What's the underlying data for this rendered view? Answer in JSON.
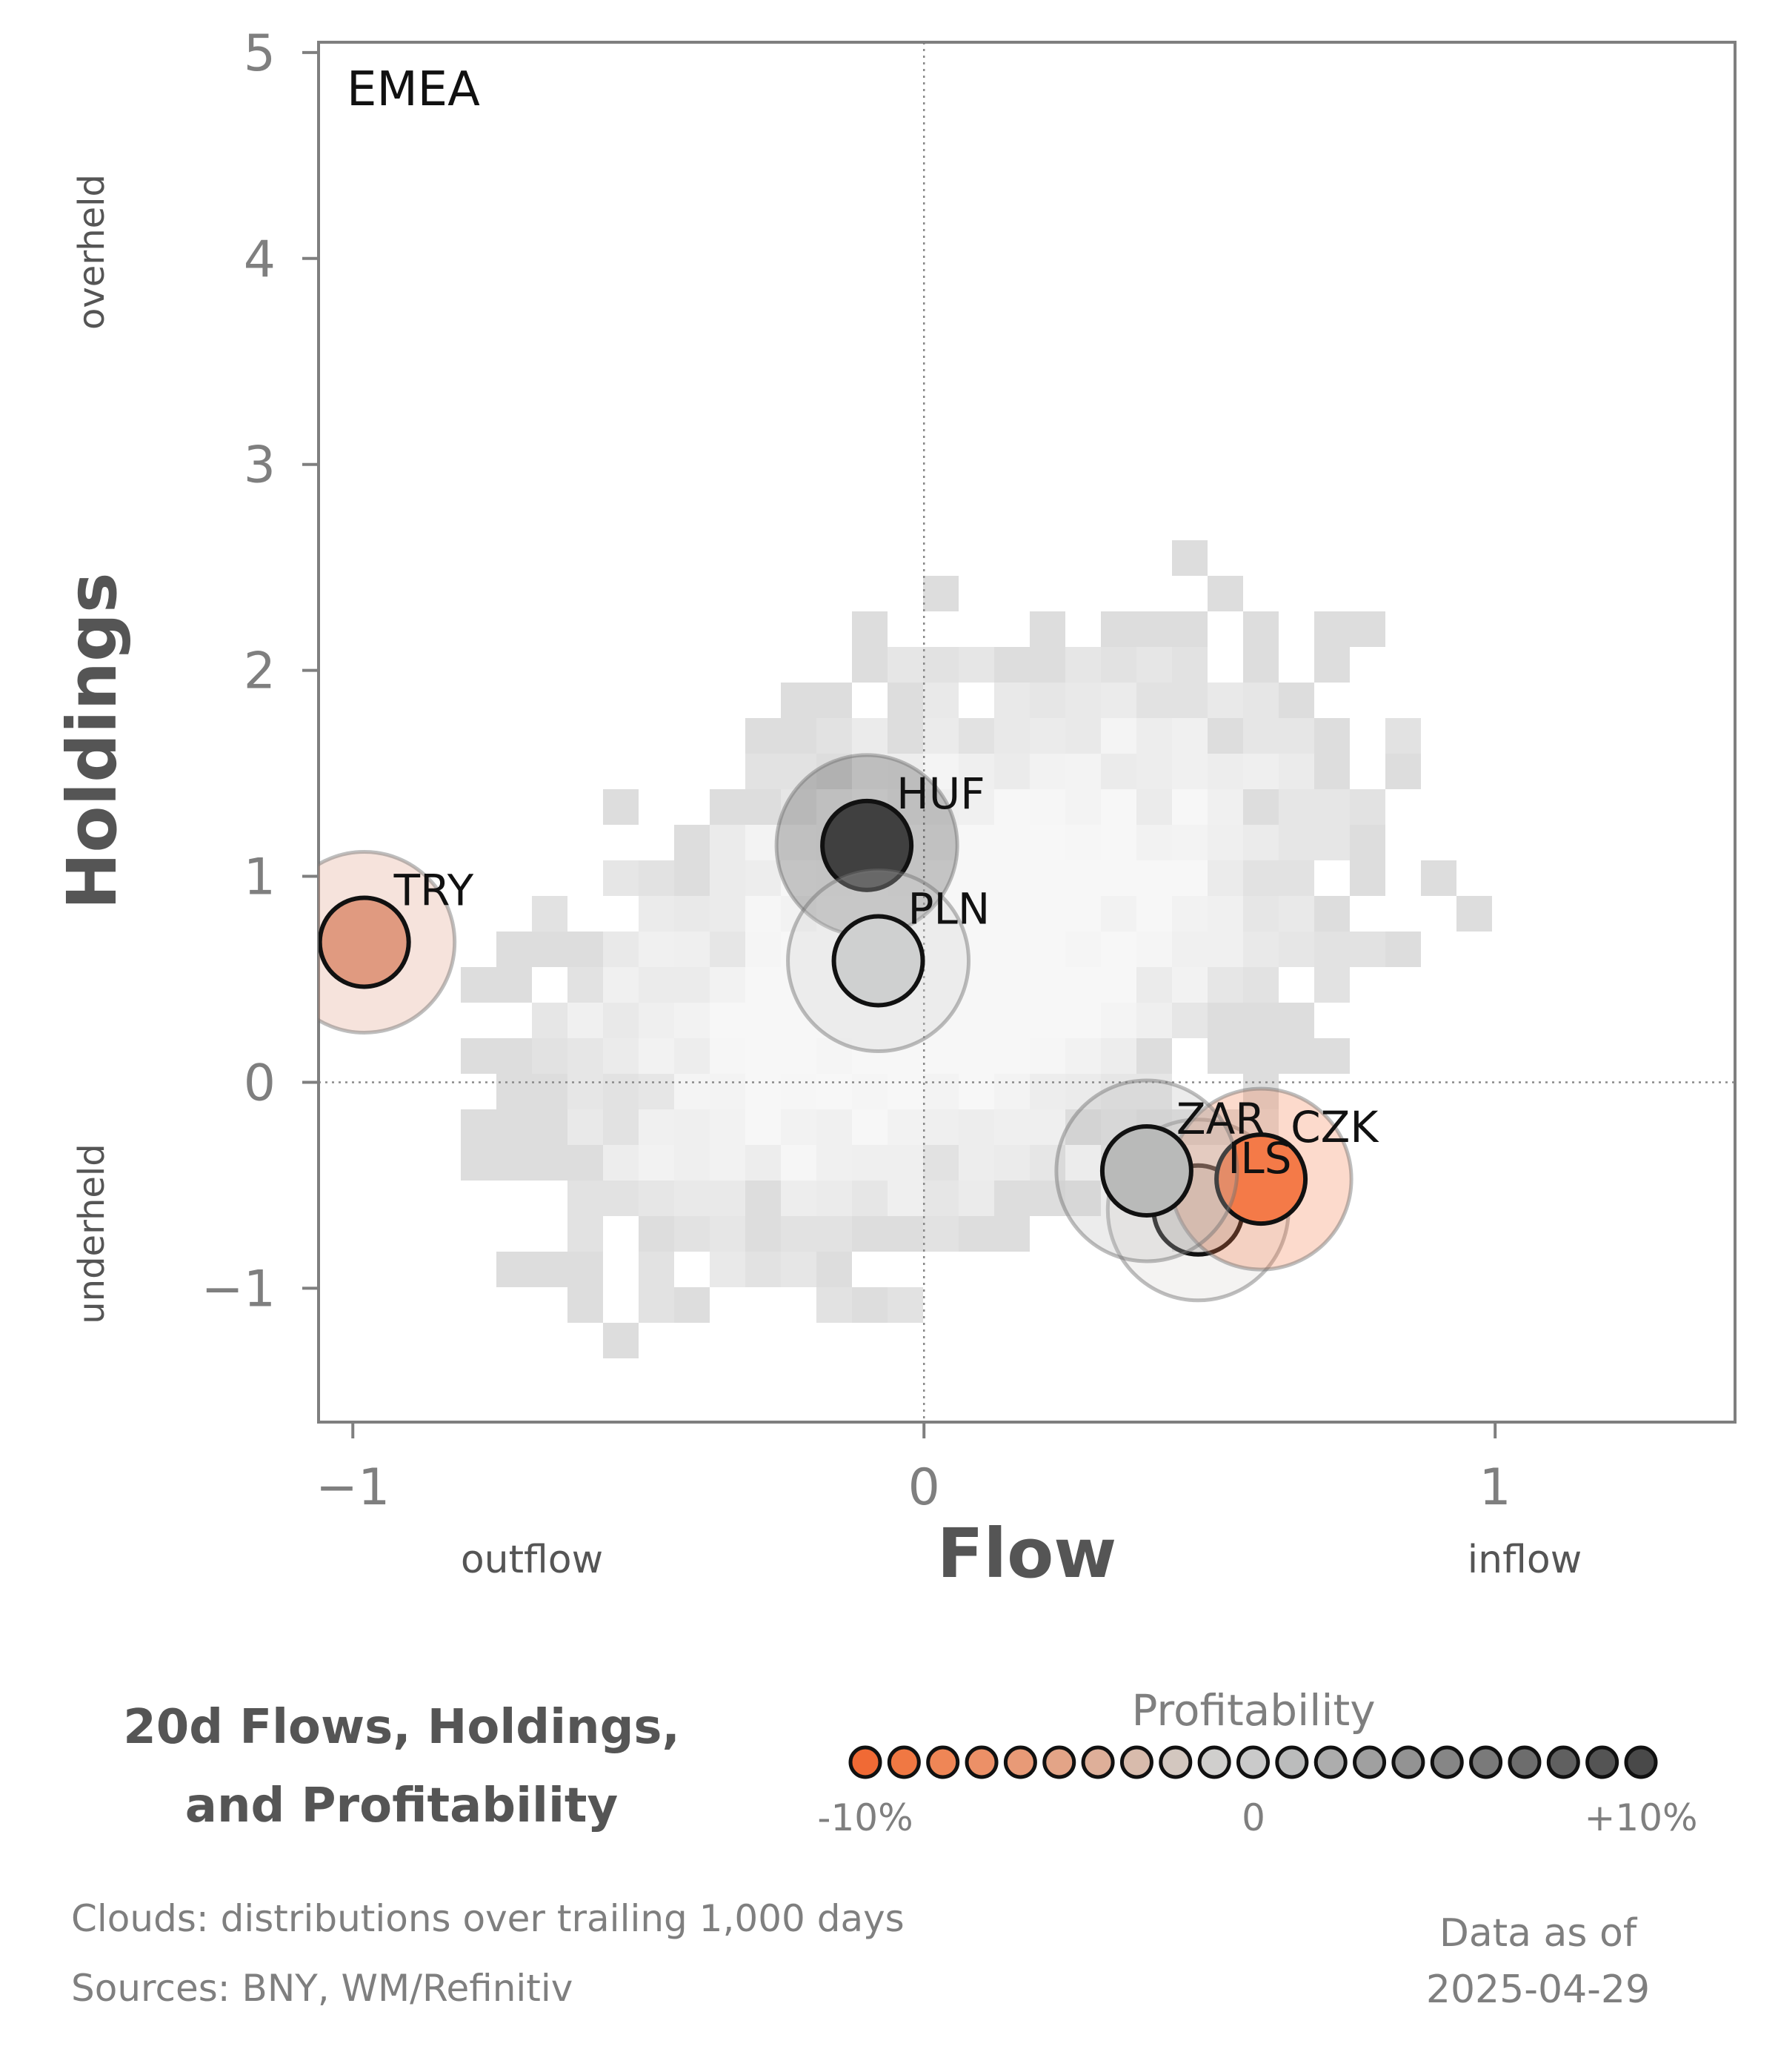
{
  "chart_data": {
    "type": "scatter",
    "title": "20d Flows, Holdings, and Profitability",
    "title_lines": [
      "20d Flows, Holdings,",
      "and Profitability"
    ],
    "panel_label": "EMEA",
    "xlabel": "Flow",
    "ylabel": "Holdings",
    "x_annotations": {
      "left": "outflow",
      "right": "inflow"
    },
    "y_annotations": {
      "top": "overheld",
      "bottom": "underheld"
    },
    "xlim": [
      -1.06,
      1.42
    ],
    "ylim": [
      -1.65,
      5.05
    ],
    "x_ticks": [
      -1,
      0,
      1
    ],
    "x_tick_labels": [
      "−1",
      "0",
      "1"
    ],
    "y_ticks": [
      -1,
      0,
      1,
      2,
      3,
      4,
      5
    ],
    "y_tick_labels": [
      "−1",
      "0",
      "1",
      "2",
      "3",
      "4",
      "5"
    ],
    "reference_lines": {
      "x": 0,
      "y": 0,
      "style": "dotted"
    },
    "background": "2D histogram clouds of trailing distributions (grey)",
    "points": [
      {
        "label": "TRY",
        "x": -0.98,
        "y": 0.68,
        "profitability": -0.05,
        "color": "#e09a80"
      },
      {
        "label": "HUF",
        "x": -0.1,
        "y": 1.15,
        "profitability": 0.1,
        "color": "#404040"
      },
      {
        "label": "PLN",
        "x": -0.08,
        "y": 0.59,
        "profitability": 0.01,
        "color": "#cfd0d0"
      },
      {
        "label": "ILS",
        "x": 0.48,
        "y": -0.62,
        "profitability": 0.0,
        "color": "#d7d4d2"
      },
      {
        "label": "CZK",
        "x": 0.59,
        "y": -0.47,
        "profitability": -0.095,
        "color": "#f47a48"
      },
      {
        "label": "ZAR",
        "x": 0.39,
        "y": -0.43,
        "profitability": 0.03,
        "color": "#b9bab9"
      }
    ],
    "colorbar": {
      "title": "Profitability",
      "min_label": "-10%",
      "mid_label": "0",
      "max_label": "+10%",
      "colors": [
        "#f06a35",
        "#f07843",
        "#ef8656",
        "#ec9067",
        "#e89a77",
        "#e3a487",
        "#deaf99",
        "#d8bbac",
        "#d3c7bf",
        "#d0cfcd",
        "#cacaca",
        "#bbbcbc",
        "#adadad",
        "#a0a0a0",
        "#939393",
        "#868686",
        "#7a7a7a",
        "#6d6d6d",
        "#606060",
        "#545454",
        "#494949"
      ]
    }
  },
  "footer": {
    "clouds_note": "Clouds:  distributions over trailing 1,000 days",
    "sources_note": "Sources:  BNY, WM/Refinitiv",
    "data_as_of_label": "Data as of",
    "data_as_of_date": "2025-04-29"
  }
}
